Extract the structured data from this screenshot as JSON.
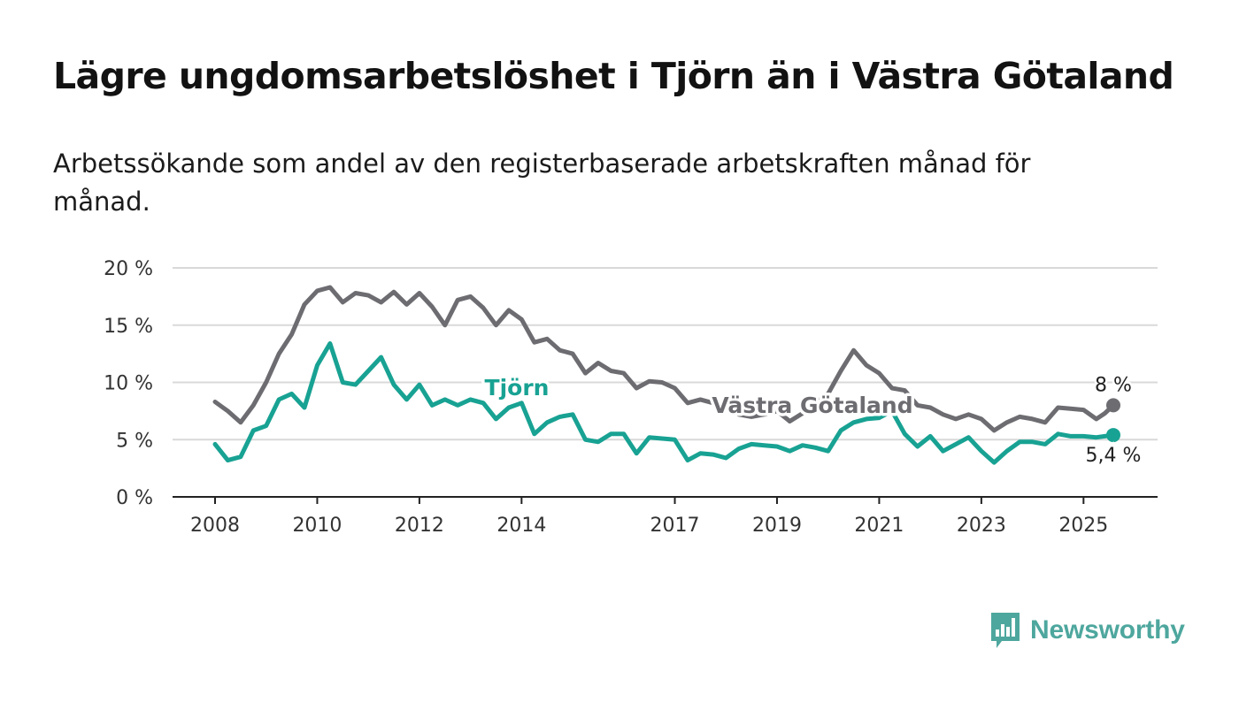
{
  "header": {
    "title": "Lägre ungdomsarbetslöshet i Tjörn än i Västra Götaland",
    "subtitle": "Arbetssökande som andel av den registerbaserade arbetskraften månad för månad."
  },
  "brand": {
    "name": "Newsworthy",
    "color": "#4ea79e",
    "icon": "bar-chart-speech-bubble-icon"
  },
  "chart_data": {
    "type": "line",
    "title": "Lägre ungdomsarbetslöshet i Tjörn än i Västra Götaland",
    "subtitle": "Arbetssökande som andel av den registerbaserade arbetskraften månad för månad.",
    "xlabel": "",
    "ylabel": "",
    "x_range": [
      "2008-01",
      "2025-08"
    ],
    "x_ticks": [
      {
        "label": "2008",
        "date": "2008-01"
      },
      {
        "label": "2010",
        "date": "2010-01"
      },
      {
        "label": "2012",
        "date": "2012-01"
      },
      {
        "label": "2014",
        "date": "2014-01"
      },
      {
        "label": "2017",
        "date": "2017-01"
      },
      {
        "label": "2019",
        "date": "2019-01"
      },
      {
        "label": "2021",
        "date": "2021-01"
      },
      {
        "label": "2023",
        "date": "2023-01"
      },
      {
        "label": "2025",
        "date": "2025-01"
      }
    ],
    "ylim": [
      0,
      20
    ],
    "y_ticks": [
      {
        "value": 0,
        "label": "0 %"
      },
      {
        "value": 5,
        "label": "5 %"
      },
      {
        "value": 10,
        "label": "10 %"
      },
      {
        "value": 15,
        "label": "15 %"
      },
      {
        "value": 20,
        "label": "20 %"
      }
    ],
    "grid": true,
    "legend": "inline labels",
    "series": [
      {
        "name": "Västra Götaland",
        "color": "#6d6c71",
        "end_label": "8 %",
        "points": [
          [
            "2008-01",
            8.3
          ],
          [
            "2008-04",
            7.5
          ],
          [
            "2008-07",
            6.5
          ],
          [
            "2008-10",
            8.0
          ],
          [
            "2009-01",
            10.0
          ],
          [
            "2009-04",
            12.5
          ],
          [
            "2009-07",
            14.2
          ],
          [
            "2009-10",
            16.8
          ],
          [
            "2010-01",
            18.0
          ],
          [
            "2010-04",
            18.3
          ],
          [
            "2010-07",
            17.0
          ],
          [
            "2010-10",
            17.8
          ],
          [
            "2011-01",
            17.6
          ],
          [
            "2011-04",
            17.0
          ],
          [
            "2011-07",
            17.9
          ],
          [
            "2011-10",
            16.8
          ],
          [
            "2012-01",
            17.8
          ],
          [
            "2012-04",
            16.6
          ],
          [
            "2012-07",
            15.0
          ],
          [
            "2012-10",
            17.2
          ],
          [
            "2013-01",
            17.5
          ],
          [
            "2013-04",
            16.5
          ],
          [
            "2013-07",
            15.0
          ],
          [
            "2013-10",
            16.3
          ],
          [
            "2014-01",
            15.5
          ],
          [
            "2014-04",
            13.5
          ],
          [
            "2014-07",
            13.8
          ],
          [
            "2014-10",
            12.8
          ],
          [
            "2015-01",
            12.5
          ],
          [
            "2015-04",
            10.8
          ],
          [
            "2015-07",
            11.7
          ],
          [
            "2015-10",
            11.0
          ],
          [
            "2016-01",
            10.8
          ],
          [
            "2016-04",
            9.5
          ],
          [
            "2016-07",
            10.1
          ],
          [
            "2016-10",
            10.0
          ],
          [
            "2017-01",
            9.5
          ],
          [
            "2017-04",
            8.2
          ],
          [
            "2017-07",
            8.5
          ],
          [
            "2017-10",
            8.2
          ],
          [
            "2018-01",
            8.0
          ],
          [
            "2018-04",
            7.2
          ],
          [
            "2018-07",
            7.0
          ],
          [
            "2018-10",
            7.2
          ],
          [
            "2019-01",
            7.5
          ],
          [
            "2019-04",
            6.6
          ],
          [
            "2019-07",
            7.3
          ],
          [
            "2019-10",
            8.2
          ],
          [
            "2020-01",
            9.0
          ],
          [
            "2020-04",
            11.0
          ],
          [
            "2020-07",
            12.8
          ],
          [
            "2020-10",
            11.5
          ],
          [
            "2021-01",
            10.8
          ],
          [
            "2021-04",
            9.5
          ],
          [
            "2021-07",
            9.3
          ],
          [
            "2021-10",
            8.0
          ],
          [
            "2022-01",
            7.8
          ],
          [
            "2022-04",
            7.2
          ],
          [
            "2022-07",
            6.8
          ],
          [
            "2022-10",
            7.2
          ],
          [
            "2023-01",
            6.8
          ],
          [
            "2023-04",
            5.8
          ],
          [
            "2023-07",
            6.5
          ],
          [
            "2023-10",
            7.0
          ],
          [
            "2024-01",
            6.8
          ],
          [
            "2024-04",
            6.5
          ],
          [
            "2024-07",
            7.8
          ],
          [
            "2024-10",
            7.7
          ],
          [
            "2025-01",
            7.6
          ],
          [
            "2025-04",
            6.8
          ],
          [
            "2025-06",
            7.3
          ],
          [
            "2025-08",
            8.0
          ]
        ]
      },
      {
        "name": "Tjörn",
        "color": "#18a293",
        "end_label": "5,4 %",
        "points": [
          [
            "2008-01",
            4.6
          ],
          [
            "2008-04",
            3.2
          ],
          [
            "2008-07",
            3.5
          ],
          [
            "2008-10",
            5.8
          ],
          [
            "2009-01",
            6.2
          ],
          [
            "2009-04",
            8.5
          ],
          [
            "2009-07",
            9.0
          ],
          [
            "2009-10",
            7.8
          ],
          [
            "2010-01",
            11.5
          ],
          [
            "2010-04",
            13.4
          ],
          [
            "2010-07",
            10.0
          ],
          [
            "2010-10",
            9.8
          ],
          [
            "2011-01",
            11.0
          ],
          [
            "2011-04",
            12.2
          ],
          [
            "2011-07",
            9.8
          ],
          [
            "2011-10",
            8.5
          ],
          [
            "2012-01",
            9.8
          ],
          [
            "2012-04",
            8.0
          ],
          [
            "2012-07",
            8.5
          ],
          [
            "2012-10",
            8.0
          ],
          [
            "2013-01",
            8.5
          ],
          [
            "2013-04",
            8.2
          ],
          [
            "2013-07",
            6.8
          ],
          [
            "2013-10",
            7.8
          ],
          [
            "2014-01",
            8.2
          ],
          [
            "2014-04",
            5.5
          ],
          [
            "2014-07",
            6.5
          ],
          [
            "2014-10",
            7.0
          ],
          [
            "2015-01",
            7.2
          ],
          [
            "2015-04",
            5.0
          ],
          [
            "2015-07",
            4.8
          ],
          [
            "2015-10",
            5.5
          ],
          [
            "2016-01",
            5.5
          ],
          [
            "2016-04",
            3.8
          ],
          [
            "2016-07",
            5.2
          ],
          [
            "2016-10",
            5.1
          ],
          [
            "2017-01",
            5.0
          ],
          [
            "2017-04",
            3.2
          ],
          [
            "2017-07",
            3.8
          ],
          [
            "2017-10",
            3.7
          ],
          [
            "2018-01",
            3.4
          ],
          [
            "2018-04",
            4.2
          ],
          [
            "2018-07",
            4.6
          ],
          [
            "2018-10",
            4.5
          ],
          [
            "2019-01",
            4.4
          ],
          [
            "2019-04",
            4.0
          ],
          [
            "2019-07",
            4.5
          ],
          [
            "2019-10",
            4.3
          ],
          [
            "2020-01",
            4.0
          ],
          [
            "2020-04",
            5.8
          ],
          [
            "2020-07",
            6.5
          ],
          [
            "2020-10",
            6.8
          ],
          [
            "2021-01",
            6.9
          ],
          [
            "2021-04",
            7.5
          ],
          [
            "2021-07",
            5.5
          ],
          [
            "2021-10",
            4.4
          ],
          [
            "2022-01",
            5.3
          ],
          [
            "2022-04",
            4.0
          ],
          [
            "2022-07",
            4.6
          ],
          [
            "2022-10",
            5.2
          ],
          [
            "2023-01",
            4.0
          ],
          [
            "2023-04",
            3.0
          ],
          [
            "2023-07",
            4.0
          ],
          [
            "2023-10",
            4.8
          ],
          [
            "2024-01",
            4.8
          ],
          [
            "2024-04",
            4.6
          ],
          [
            "2024-07",
            5.5
          ],
          [
            "2024-10",
            5.3
          ],
          [
            "2025-01",
            5.3
          ],
          [
            "2025-04",
            5.2
          ],
          [
            "2025-06",
            5.3
          ],
          [
            "2025-08",
            5.4
          ]
        ]
      }
    ]
  }
}
